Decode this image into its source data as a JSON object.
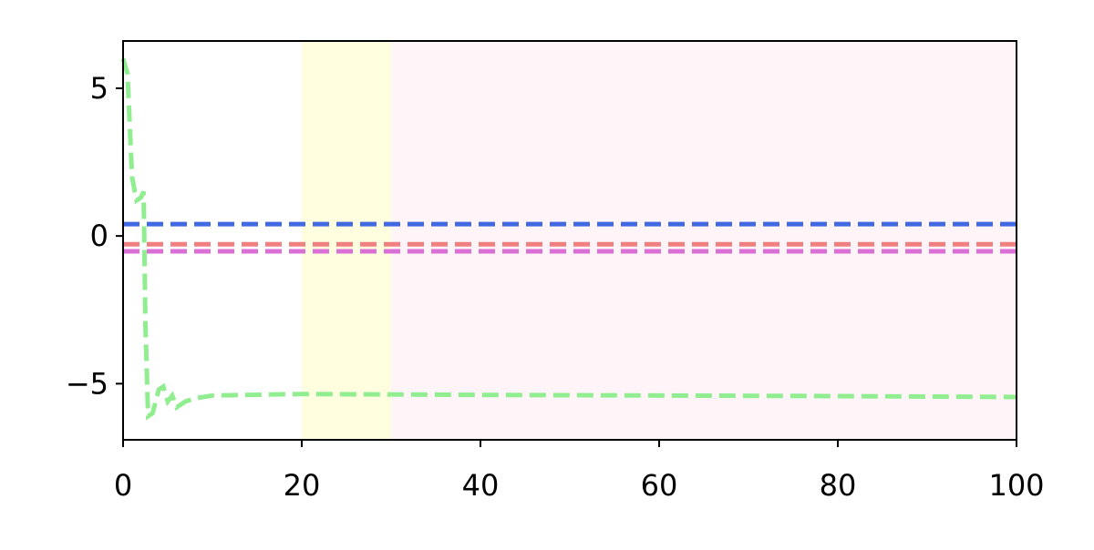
{
  "chart_data": {
    "type": "line",
    "xlim": [
      0,
      100
    ],
    "ylim": [
      -6.9,
      6.6
    ],
    "xticks": [
      0,
      20,
      40,
      60,
      80,
      100
    ],
    "yticks": [
      {
        "value": -5,
        "label": "−5"
      },
      0,
      5
    ],
    "spans": [
      {
        "x0": 20,
        "x1": 30,
        "color": "#ffffe0"
      },
      {
        "x0": 30,
        "x1": 100,
        "color": "#fff5f8"
      }
    ],
    "series": [
      {
        "color": "#4169e1",
        "x": [
          0,
          100
        ],
        "values": [
          0.4,
          0.4
        ]
      },
      {
        "color": "#f08080",
        "x": [
          0,
          100
        ],
        "values": [
          -0.28,
          -0.28
        ]
      },
      {
        "color": "#da70d6",
        "x": [
          0,
          100
        ],
        "values": [
          -0.52,
          -0.52
        ]
      },
      {
        "color": "#90ee90",
        "x": [
          0,
          0.5,
          1,
          1.5,
          2,
          2.3,
          2.5,
          2.8,
          3.3,
          4,
          4.5,
          5,
          5.5,
          6,
          7,
          8,
          10,
          20,
          40,
          60,
          80,
          100
        ],
        "values": [
          6.0,
          5.5,
          2.0,
          1.2,
          1.3,
          1.5,
          -3.0,
          -6.1,
          -6.0,
          -5.2,
          -5.1,
          -5.6,
          -5.4,
          -5.8,
          -5.6,
          -5.5,
          -5.4,
          -5.35,
          -5.38,
          -5.4,
          -5.42,
          -5.45
        ]
      }
    ]
  }
}
